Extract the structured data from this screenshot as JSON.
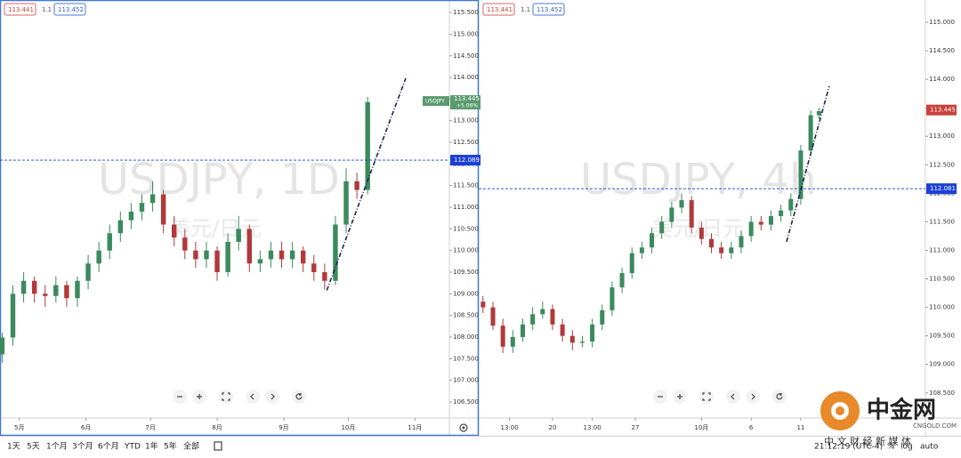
{
  "toolbar": {
    "ranges": [
      "1天",
      "5天",
      "1个月",
      "3个月",
      "6个月",
      "YTD",
      "1年",
      "5年",
      "全部"
    ],
    "clock": "21:12:19 (UTC-4)",
    "percent": "%",
    "log": "log",
    "auto": "auto"
  },
  "logo": {
    "name": "中金网",
    "site": "CNGOLD.COM",
    "tagline": "中 文 财 经 新 媒 体"
  },
  "chart_data": [
    {
      "type": "candlestick",
      "title": "USDJPY, 1D",
      "subtitle": "美元/日元",
      "symbol": "USDJPY",
      "change": "+5.06%",
      "quote": {
        "bid": 113.441,
        "spread": 1.1,
        "ask": 113.452
      },
      "up_color": "#3b8a5e",
      "down_color": "#b03a3a",
      "grid": false,
      "x": [
        -8,
        -3,
        2,
        7,
        12,
        17,
        22,
        27,
        32,
        37,
        42,
        47,
        52,
        57,
        62,
        67,
        72,
        77,
        82,
        87,
        92,
        97,
        102,
        107,
        112,
        117,
        122,
        127,
        132,
        137,
        142,
        147,
        152,
        157,
        162
      ],
      "open": [
        107.6,
        107.99,
        109.0,
        109.3,
        109.0,
        108.95,
        109.2,
        108.9,
        109.3,
        109.7,
        110.0,
        110.4,
        110.7,
        110.9,
        111.1,
        111.3,
        110.6,
        110.3,
        110.0,
        109.8,
        110.0,
        109.5,
        110.2,
        110.5,
        109.7,
        109.8,
        110.0,
        109.8,
        110.0,
        109.7,
        109.5,
        109.3,
        110.6,
        111.6,
        111.4
      ],
      "high": [
        108.1,
        109.2,
        109.5,
        109.4,
        109.2,
        109.4,
        109.3,
        109.4,
        109.9,
        110.2,
        110.6,
        110.9,
        111.1,
        111.3,
        111.6,
        111.4,
        110.8,
        110.5,
        110.2,
        110.2,
        110.1,
        110.4,
        110.8,
        110.6,
        110.0,
        110.2,
        110.2,
        110.2,
        110.1,
        109.9,
        109.7,
        110.8,
        111.9,
        111.8,
        113.55
      ],
      "low": [
        107.4,
        107.8,
        108.8,
        108.8,
        108.7,
        108.8,
        108.7,
        108.7,
        109.1,
        109.5,
        109.8,
        110.2,
        110.5,
        110.7,
        110.9,
        110.4,
        110.1,
        109.8,
        109.6,
        109.6,
        109.3,
        109.4,
        110.0,
        109.5,
        109.5,
        109.6,
        109.6,
        109.6,
        109.5,
        109.3,
        109.1,
        109.2,
        110.4,
        111.2,
        111.3
      ],
      "close": [
        107.99,
        109.0,
        109.3,
        109.0,
        108.95,
        109.2,
        108.9,
        109.3,
        109.7,
        110.0,
        110.4,
        110.7,
        110.9,
        111.1,
        111.3,
        110.6,
        110.3,
        110.0,
        109.8,
        110.0,
        109.5,
        110.2,
        110.5,
        109.7,
        109.8,
        110.0,
        109.8,
        110.0,
        109.7,
        109.5,
        109.3,
        110.6,
        111.6,
        111.4,
        113.43
      ],
      "last_price": 113.445,
      "last_color": "#5a9a6e",
      "hline": 112.089,
      "hline_color": "#1a3fd6",
      "trendline": {
        "x": [
          143,
          179.7
        ],
        "y": [
          109.08,
          113.98
        ],
        "color": "#24244e"
      },
      "xlim": [
        -9,
        200
      ],
      "xticks": [
        {
          "value": 0,
          "label": "5月"
        },
        {
          "value": 31,
          "label": "6月"
        },
        {
          "value": 61,
          "label": "7月"
        },
        {
          "value": 92,
          "label": "8月"
        },
        {
          "value": 123,
          "label": "9月"
        },
        {
          "value": 153,
          "label": "10月"
        },
        {
          "value": 184,
          "label": "11月"
        }
      ],
      "ylim": [
        106.13,
        115.79
      ],
      "yticks": [
        {
          "value": 106.5,
          "label": "106.500"
        },
        {
          "value": 107,
          "label": "107.000"
        },
        {
          "value": 107.5,
          "label": "107.500"
        },
        {
          "value": 108,
          "label": "108.000"
        },
        {
          "value": 108.5,
          "label": "108.500"
        },
        {
          "value": 109,
          "label": "109.000"
        },
        {
          "value": 109.5,
          "label": "109.500"
        },
        {
          "value": 110,
          "label": "110.000"
        },
        {
          "value": 110.5,
          "label": "110.500"
        },
        {
          "value": 111,
          "label": "111.000"
        },
        {
          "value": 111.5,
          "label": "111.500"
        },
        {
          "value": 112,
          "label": "112.000"
        },
        {
          "value": 112.5,
          "label": "112.500"
        },
        {
          "value": 113,
          "label": "113.000"
        },
        {
          "value": 113.5,
          "label": "113.500"
        },
        {
          "value": 114,
          "label": "114.000"
        },
        {
          "value": 114.5,
          "label": "114.500"
        },
        {
          "value": 115,
          "label": "115.000"
        },
        {
          "value": 115.5,
          "label": "115.500"
        }
      ]
    },
    {
      "type": "candlestick",
      "title": "USDJPY, 4h",
      "subtitle": "美元/日元",
      "quote": {
        "bid": 113.441,
        "spread": 1.1,
        "ask": 113.452
      },
      "up_color": "#3b8a5e",
      "down_color": "#b03a3a",
      "grid": false,
      "x": [
        -4.2,
        -3.6,
        -3.0,
        -2.4,
        -1.8,
        -1.2,
        -0.6,
        0,
        0.6,
        1.2,
        1.8,
        2.4,
        3.0,
        3.6,
        4.2,
        4.8,
        5.4,
        6.0,
        6.6,
        7.2,
        7.8,
        8.4,
        9.0,
        9.6,
        10.2,
        10.8,
        11.4,
        12.0,
        12.6,
        13.2,
        13.8,
        14.4,
        15.0,
        15.6,
        16.1
      ],
      "open": [
        110.1,
        110.0,
        109.68,
        109.31,
        109.48,
        109.7,
        109.88,
        109.97,
        109.7,
        109.5,
        109.38,
        109.4,
        109.7,
        109.95,
        110.35,
        110.6,
        110.95,
        111.05,
        111.3,
        111.5,
        111.75,
        111.88,
        111.4,
        111.2,
        111.05,
        110.95,
        111.05,
        111.25,
        111.5,
        111.45,
        111.6,
        111.7,
        111.9,
        112.75,
        113.37
      ],
      "high": [
        110.2,
        110.1,
        109.8,
        109.6,
        109.8,
        110.0,
        110.1,
        110.05,
        109.8,
        109.6,
        109.5,
        109.8,
        110.05,
        110.45,
        110.7,
        111.05,
        111.15,
        111.4,
        111.6,
        111.85,
        112.0,
        111.95,
        111.5,
        111.3,
        111.15,
        111.15,
        111.35,
        111.6,
        111.6,
        111.7,
        111.8,
        112.0,
        112.85,
        113.45,
        113.5
      ],
      "low": [
        109.9,
        109.6,
        109.2,
        109.2,
        109.4,
        109.6,
        109.8,
        109.6,
        109.4,
        109.25,
        109.3,
        109.3,
        109.6,
        109.85,
        110.25,
        110.5,
        110.85,
        110.95,
        111.2,
        111.4,
        111.65,
        111.3,
        111.1,
        110.95,
        110.85,
        110.85,
        110.95,
        111.15,
        111.35,
        111.35,
        111.5,
        111.6,
        111.8,
        112.65,
        113.3
      ],
      "close": [
        110.0,
        109.68,
        109.31,
        109.48,
        109.7,
        109.88,
        109.97,
        109.7,
        109.5,
        109.38,
        109.4,
        109.7,
        109.95,
        110.35,
        110.6,
        110.95,
        111.05,
        111.3,
        111.5,
        111.75,
        111.88,
        111.4,
        111.2,
        111.05,
        110.95,
        111.05,
        111.25,
        111.5,
        111.45,
        111.6,
        111.7,
        111.9,
        112.75,
        113.37,
        113.44
      ],
      "last_price": 113.445,
      "last_color": "#c9423a",
      "hline": 112.081,
      "hline_color": "#1a3fd6",
      "trendline": {
        "x": [
          14.14,
          16.72
        ],
        "y": [
          111.15,
          113.88
        ],
        "color": "#24244e"
      },
      "xlim": [
        -4.46,
        22.53
      ],
      "xticks": [
        {
          "value": -2.6,
          "label": "13:00"
        },
        {
          "value": 0,
          "label": "20"
        },
        {
          "value": 2.4,
          "label": "13:00"
        },
        {
          "value": 5,
          "label": "27"
        },
        {
          "value": 9,
          "label": "10月"
        },
        {
          "value": 12,
          "label": "6"
        },
        {
          "value": 15,
          "label": "11"
        }
      ],
      "ylim": [
        108.06,
        115.39
      ],
      "yticks": [
        {
          "value": 108.5,
          "label": "108.500"
        },
        {
          "value": 109,
          "label": "109.000"
        },
        {
          "value": 109.5,
          "label": "109.500"
        },
        {
          "value": 110,
          "label": "110.000"
        },
        {
          "value": 110.5,
          "label": "110.500"
        },
        {
          "value": 111,
          "label": "111.000"
        },
        {
          "value": 111.5,
          "label": "111.500"
        },
        {
          "value": 112,
          "label": "112.000"
        },
        {
          "value": 112.5,
          "label": "112.500"
        },
        {
          "value": 113,
          "label": "113.000"
        },
        {
          "value": 113.5,
          "label": "113.500"
        },
        {
          "value": 114,
          "label": "114.000"
        },
        {
          "value": 114.5,
          "label": "114.500"
        },
        {
          "value": 115,
          "label": "115.000"
        }
      ]
    }
  ]
}
